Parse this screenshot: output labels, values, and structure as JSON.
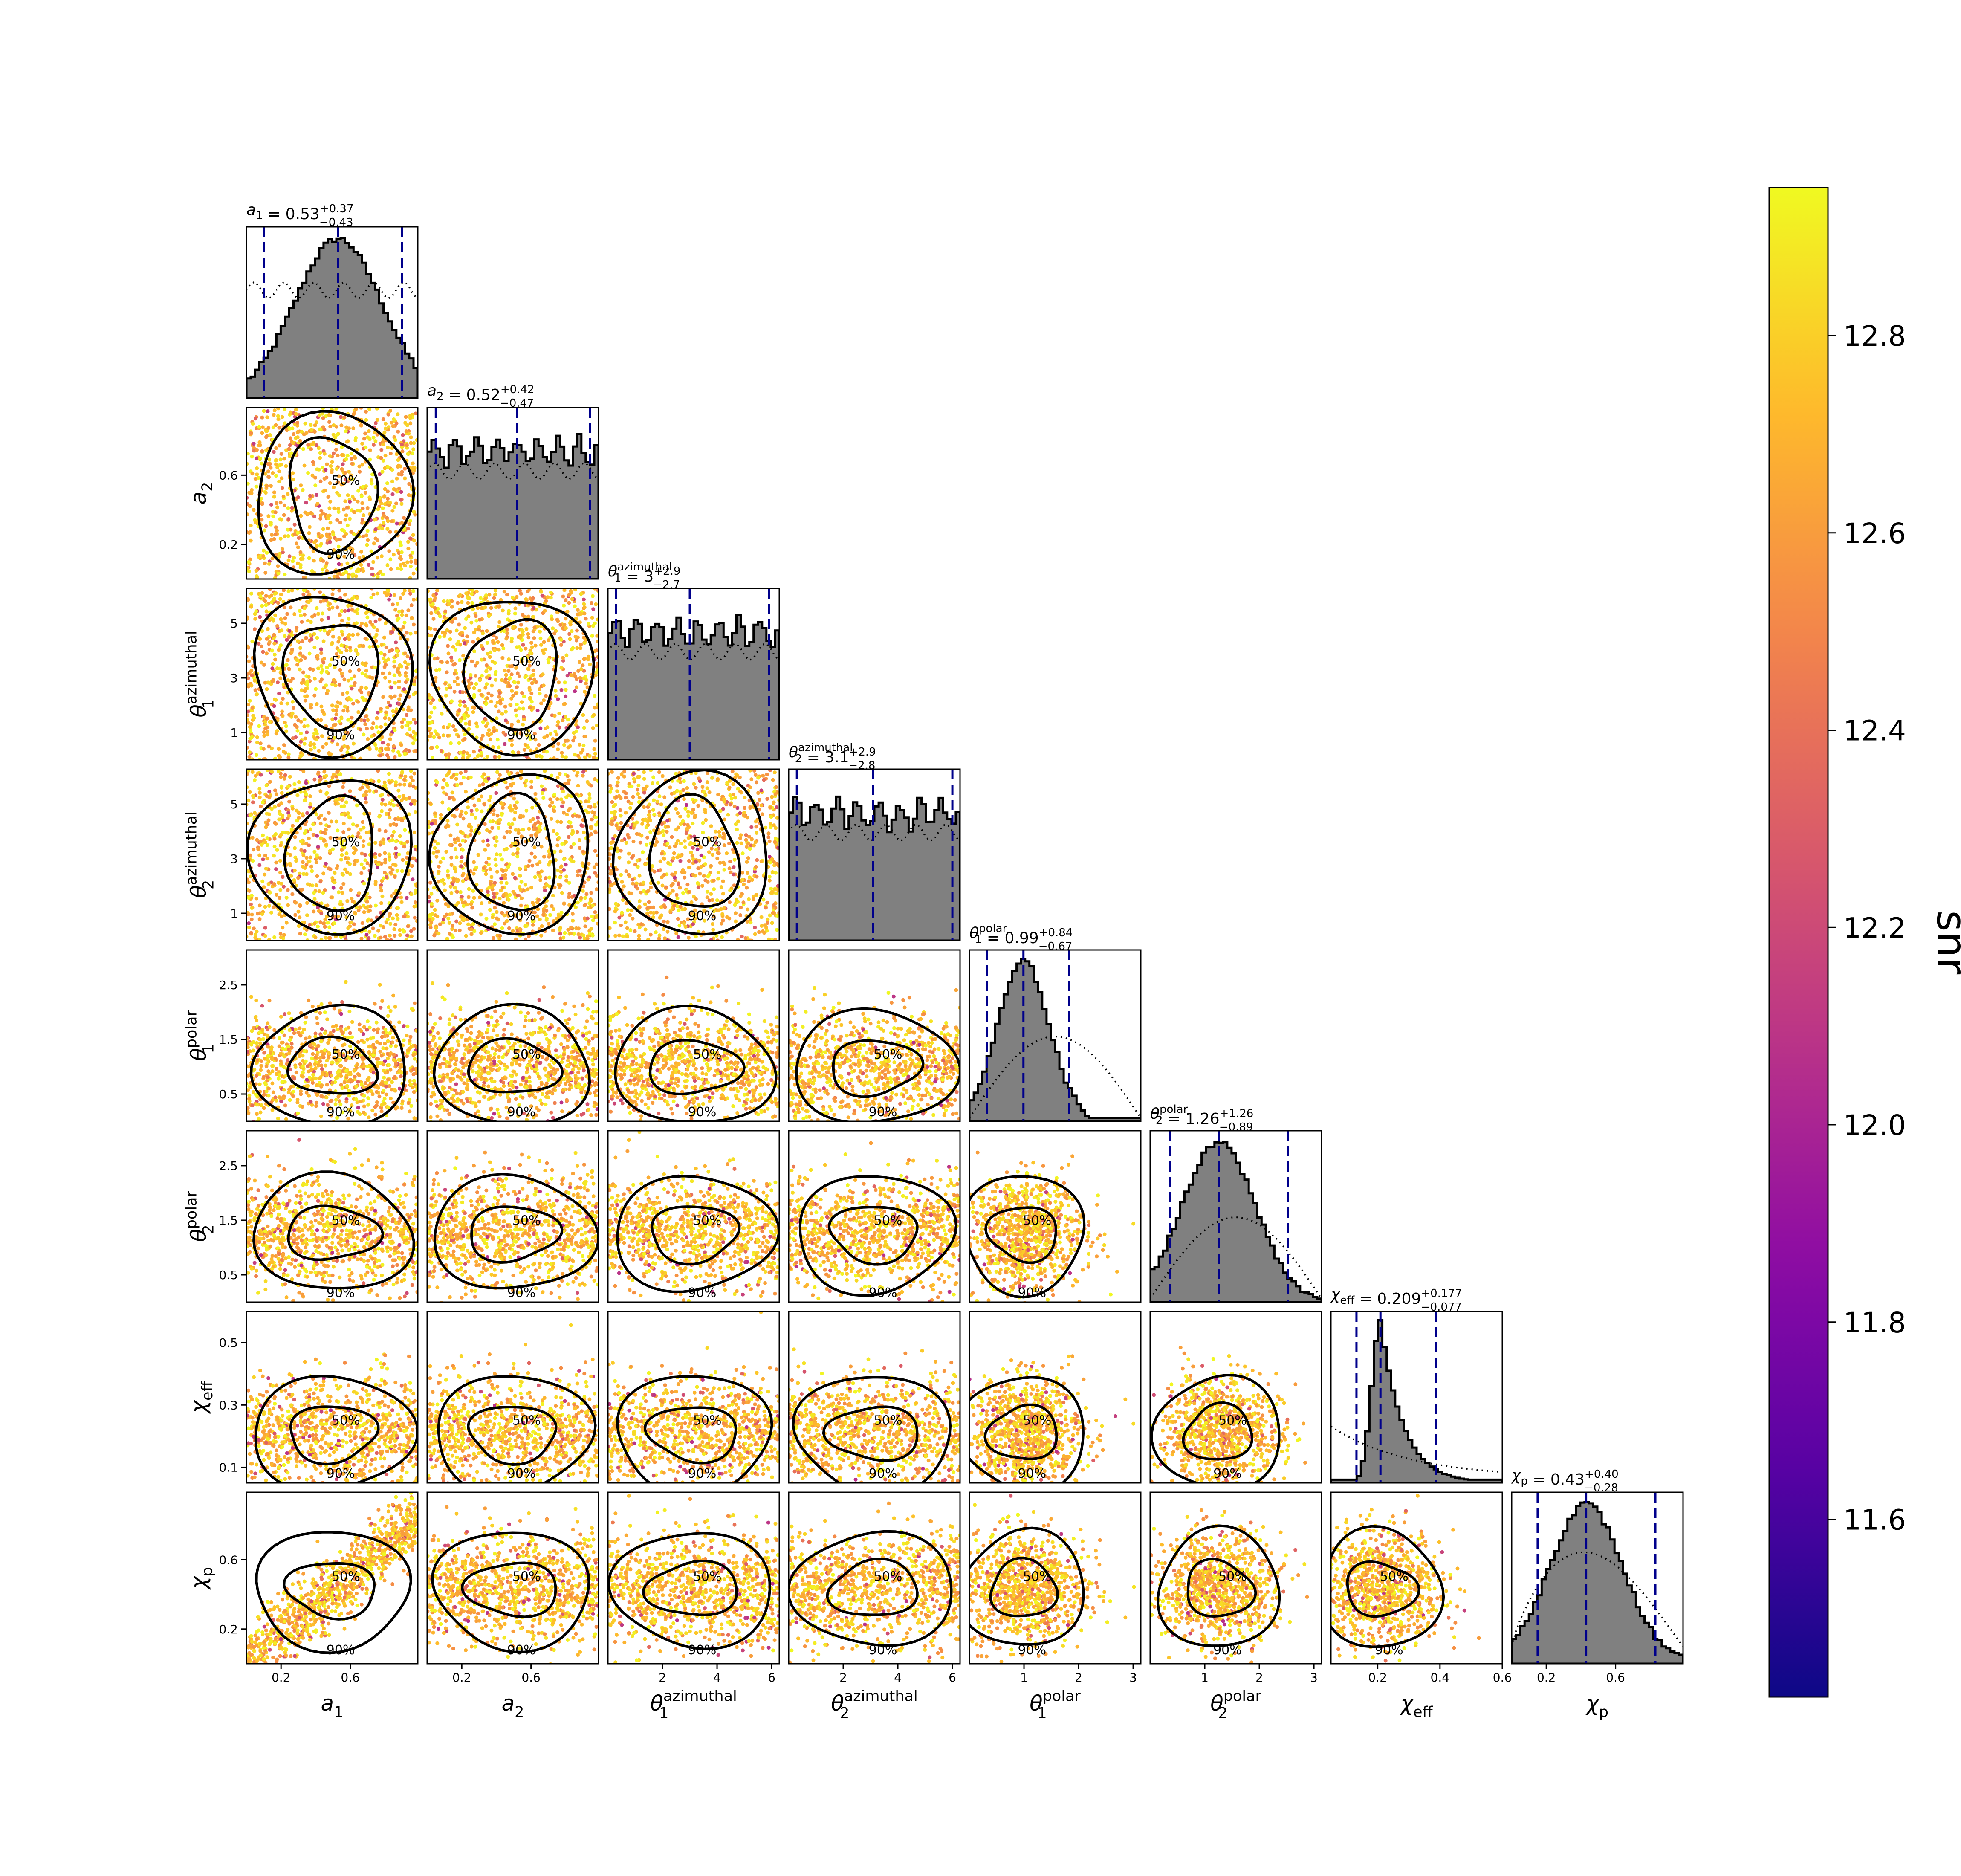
{
  "chart_data": {
    "type": "scatter",
    "description_kind": "corner plot",
    "parameters": [
      {
        "key": "a1",
        "label_base": "a",
        "label_sub": "1",
        "label_sup": "",
        "ticks": [
          0.2,
          0.6
        ],
        "range": [
          0.0,
          0.99
        ]
      },
      {
        "key": "a2",
        "label_base": "a",
        "label_sub": "2",
        "label_sup": "",
        "ticks": [
          0.2,
          0.6
        ],
        "range": [
          0.0,
          0.99
        ]
      },
      {
        "key": "theta1_az",
        "label_base": "θ",
        "label_sub": "1",
        "label_sup": "azimuthal",
        "ticks": [
          1,
          3,
          5
        ],
        "range": [
          0.0,
          6.28
        ]
      },
      {
        "key": "theta2_az",
        "label_base": "θ",
        "label_sub": "2",
        "label_sup": "azimuthal",
        "ticks": [
          1,
          3,
          5
        ],
        "range": [
          0.0,
          6.28
        ]
      },
      {
        "key": "theta1_polar",
        "label_base": "θ",
        "label_sub": "1",
        "label_sup": "polar",
        "ticks": [
          0.5,
          1.5,
          2.5
        ],
        "range": [
          0.0,
          3.14
        ]
      },
      {
        "key": "theta2_polar",
        "label_base": "θ",
        "label_sub": "2",
        "label_sup": "polar",
        "ticks": [
          0.5,
          1.5,
          2.5
        ],
        "range": [
          0.0,
          3.14
        ]
      },
      {
        "key": "chi_eff",
        "label_base": "χ",
        "label_sub": "eff",
        "label_sup": "",
        "ticks": [
          0.1,
          0.3,
          0.5
        ],
        "range": [
          0.05,
          0.6
        ]
      },
      {
        "key": "chi_p",
        "label_base": "χ",
        "label_sub": "p",
        "label_sup": "",
        "ticks": [
          0.2,
          0.6
        ],
        "range": [
          0.0,
          0.99
        ]
      }
    ],
    "bottom_ticks": [
      [
        0.2,
        0.6
      ],
      [
        0.2,
        0.6
      ],
      [
        2,
        4,
        6
      ],
      [
        2,
        4,
        6
      ],
      [
        1,
        2,
        3
      ],
      [
        1,
        2,
        3
      ],
      [
        0.2,
        0.4,
        0.6
      ],
      [
        0.2,
        0.6
      ]
    ],
    "summaries": [
      {
        "param": "a1",
        "median": "0.53",
        "plus": "+0.37",
        "minus": "−0.43",
        "lo": 0.1,
        "mid": 0.53,
        "hi": 0.9
      },
      {
        "param": "a2",
        "median": "0.52",
        "plus": "+0.42",
        "minus": "−0.47",
        "lo": 0.05,
        "mid": 0.52,
        "hi": 0.94
      },
      {
        "param": "theta1_az",
        "median": "3",
        "plus": "+2.9",
        "minus": "−2.7",
        "lo": 0.3,
        "mid": 3.0,
        "hi": 5.9
      },
      {
        "param": "theta2_az",
        "median": "3.1",
        "plus": "+2.9",
        "minus": "−2.8",
        "lo": 0.3,
        "mid": 3.1,
        "hi": 6.0
      },
      {
        "param": "theta1_polar",
        "median": "0.99",
        "plus": "+0.84",
        "minus": "−0.67",
        "lo": 0.32,
        "mid": 0.99,
        "hi": 1.83
      },
      {
        "param": "theta2_polar",
        "median": "1.26",
        "plus": "+1.26",
        "minus": "−0.89",
        "lo": 0.37,
        "mid": 1.26,
        "hi": 2.52
      },
      {
        "param": "chi_eff",
        "median": "0.209",
        "plus": "+0.177",
        "minus": "−0.077",
        "lo": 0.132,
        "mid": 0.209,
        "hi": 0.386
      },
      {
        "param": "chi_p",
        "median": "0.43",
        "plus": "+0.40",
        "minus": "−0.28",
        "lo": 0.15,
        "mid": 0.43,
        "hi": 0.83
      }
    ],
    "contour_labels": [
      "50%",
      "90%"
    ],
    "colorbar": {
      "label": "snr",
      "range": [
        11.42,
        12.95
      ],
      "ticks": [
        11.6,
        11.8,
        12.0,
        12.2,
        12.4,
        12.6,
        12.8
      ],
      "tick_labels": [
        "11.6",
        "11.8",
        "12.0",
        "12.2",
        "12.4",
        "12.6",
        "12.8"
      ],
      "colormap": "plasma"
    },
    "colors": {
      "histogram_fill": "#808080",
      "histogram_edge": "#000000",
      "credible_interval_lines": "#00008b",
      "contour": "#000000"
    },
    "grid": false,
    "legend": "none"
  }
}
